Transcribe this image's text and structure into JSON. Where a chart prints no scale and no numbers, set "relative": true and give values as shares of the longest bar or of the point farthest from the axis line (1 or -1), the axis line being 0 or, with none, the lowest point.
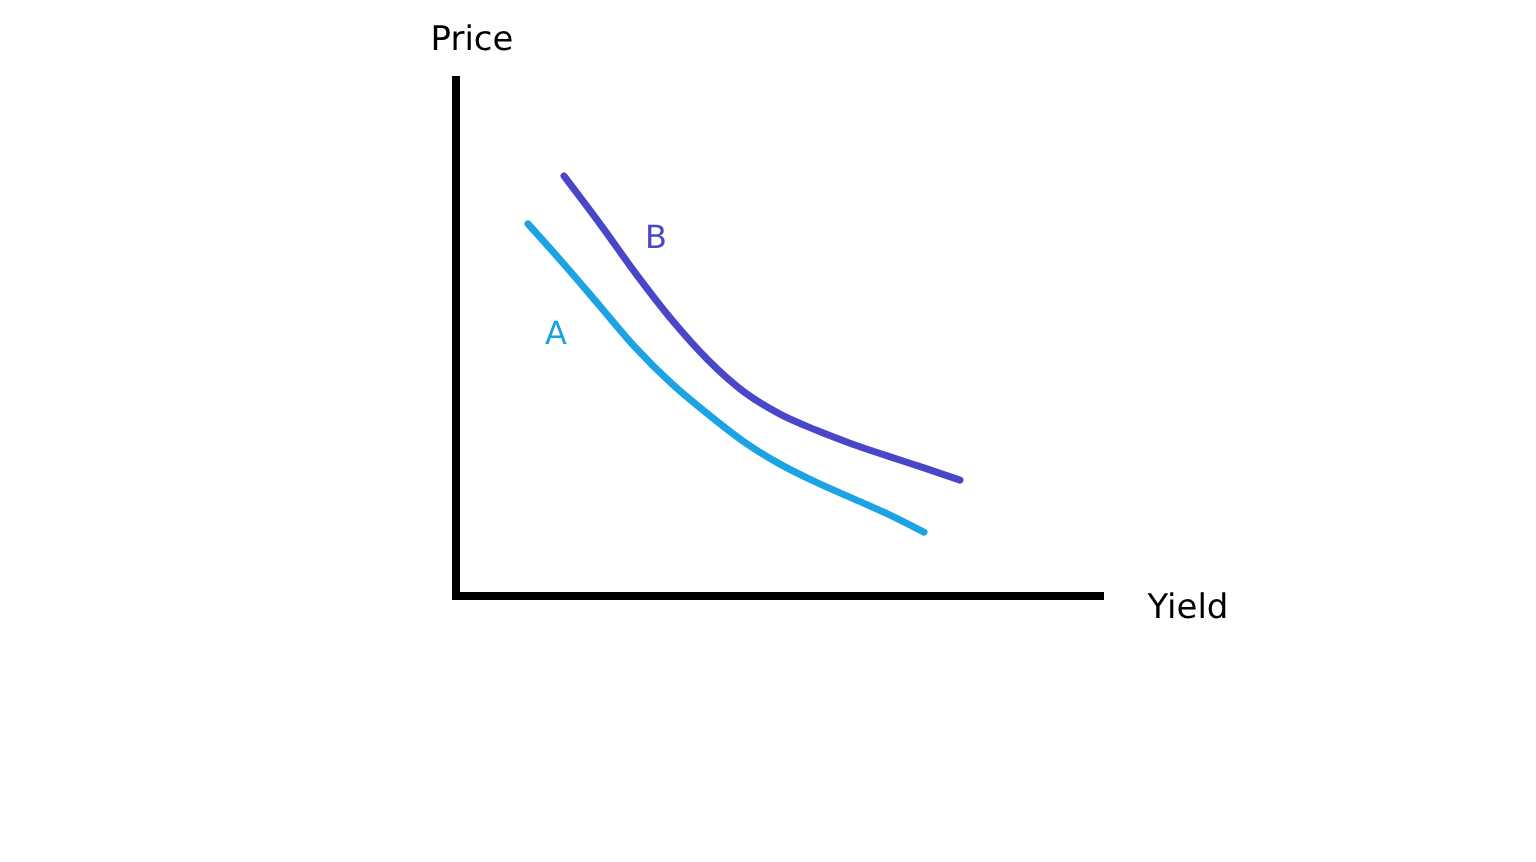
{
  "chart_data": {
    "type": "line",
    "relative": true,
    "xlabel": "Yield",
    "ylabel": "Price",
    "categories": [
      null,
      null,
      null,
      null,
      null,
      null,
      null,
      null,
      null,
      null,
      null,
      null,
      null,
      null,
      null,
      null,
      null,
      null,
      null
    ],
    "series": [
      {
        "name": "A",
        "color": "#1ba3e3",
        "values": [
          null,
          null,
          0.886,
          0.79,
          0.69,
          0.59,
          0.505,
          0.433,
          0.367,
          0.314,
          0.271,
          0.233,
          0.195,
          0.152,
          null,
          null,
          null,
          null,
          null
        ]
      },
      {
        "name": "B",
        "color": "#4a46c8",
        "values": [
          null,
          null,
          null,
          1.0,
          0.886,
          0.767,
          0.657,
          0.562,
          0.486,
          0.433,
          0.395,
          0.362,
          0.333,
          0.305,
          0.276,
          null,
          null,
          null,
          null
        ]
      }
    ],
    "legend": false,
    "grid": false,
    "marker": "none",
    "line_style": "solid"
  }
}
